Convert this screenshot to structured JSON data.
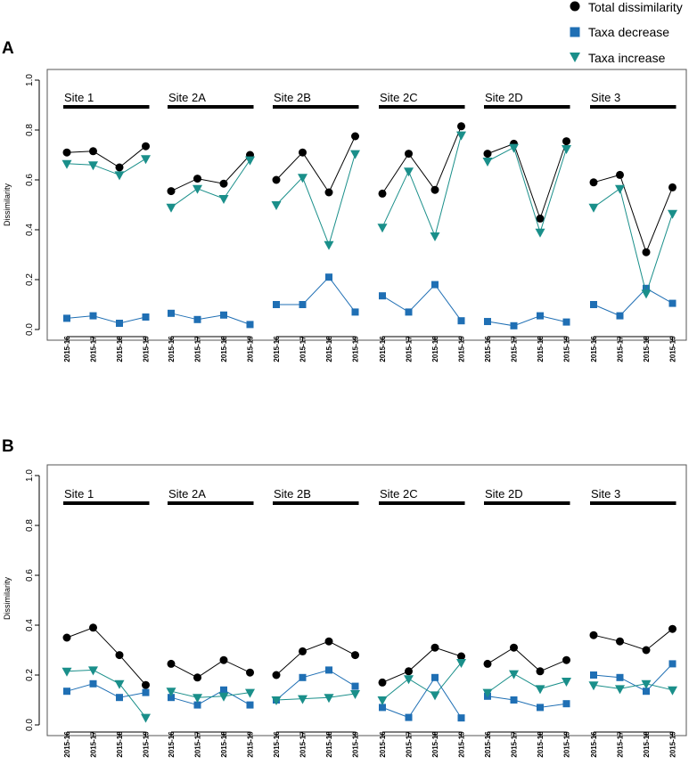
{
  "legend": {
    "items": [
      {
        "label": "Total dissimilarity",
        "marker": "circle",
        "color": "#000000"
      },
      {
        "label": "Taxa decrease",
        "marker": "square",
        "color": "#1f6fb4"
      },
      {
        "label": "Taxa increase",
        "marker": "triangle-down",
        "color": "#1a8f8a"
      }
    ]
  },
  "colors": {
    "total": "#000000",
    "decrease": "#1f6fb4",
    "increase": "#1a8f8a",
    "site_bar": "#000000",
    "axis": "#000000"
  },
  "chart_data": [
    {
      "panel_label": "A",
      "type": "line",
      "ylabel": "Dissimilarity",
      "ylim": [
        0,
        1.0
      ],
      "yticks": [
        "0.0",
        "0.2",
        "0.4",
        "0.6",
        "0.8",
        "1.0"
      ],
      "categories": [
        "2015-16",
        "2015-17",
        "2015-18",
        "2015-19"
      ],
      "sites": [
        {
          "name": "Site 1",
          "total": [
            0.71,
            0.715,
            0.65,
            0.735
          ],
          "decrease": [
            0.045,
            0.055,
            0.025,
            0.05
          ],
          "increase": [
            0.665,
            0.66,
            0.62,
            0.685
          ]
        },
        {
          "name": "Site 2A",
          "total": [
            0.555,
            0.605,
            0.585,
            0.7
          ],
          "decrease": [
            0.065,
            0.04,
            0.058,
            0.02
          ],
          "increase": [
            0.49,
            0.565,
            0.525,
            0.68
          ]
        },
        {
          "name": "Site 2B",
          "total": [
            0.6,
            0.71,
            0.55,
            0.775
          ],
          "decrease": [
            0.1,
            0.1,
            0.21,
            0.07
          ],
          "increase": [
            0.5,
            0.61,
            0.34,
            0.705
          ]
        },
        {
          "name": "Site 2C",
          "total": [
            0.545,
            0.705,
            0.56,
            0.815
          ],
          "decrease": [
            0.135,
            0.07,
            0.18,
            0.035
          ],
          "increase": [
            0.41,
            0.635,
            0.375,
            0.78
          ]
        },
        {
          "name": "Site 2D",
          "total": [
            0.705,
            0.745,
            0.445,
            0.755
          ],
          "decrease": [
            0.032,
            0.015,
            0.055,
            0.03
          ],
          "increase": [
            0.675,
            0.73,
            0.39,
            0.725
          ]
        },
        {
          "name": "Site 3",
          "total": [
            0.59,
            0.62,
            0.31,
            0.57
          ],
          "decrease": [
            0.1,
            0.055,
            0.165,
            0.105
          ],
          "increase": [
            0.49,
            0.565,
            0.145,
            0.465
          ]
        }
      ]
    },
    {
      "panel_label": "B",
      "type": "line",
      "ylabel": "Dissimilarity",
      "ylim": [
        0,
        1.0
      ],
      "yticks": [
        "0.0",
        "0.2",
        "0.4",
        "0.6",
        "0.8",
        "1.0"
      ],
      "categories": [
        "2015-16",
        "2015-17",
        "2015-18",
        "2015-19"
      ],
      "sites": [
        {
          "name": "Site 1",
          "total": [
            0.35,
            0.39,
            0.28,
            0.16
          ],
          "decrease": [
            0.135,
            0.165,
            0.11,
            0.13
          ],
          "increase": [
            0.215,
            0.22,
            0.165,
            0.03
          ]
        },
        {
          "name": "Site 2A",
          "total": [
            0.245,
            0.19,
            0.26,
            0.21
          ],
          "decrease": [
            0.11,
            0.08,
            0.14,
            0.08
          ],
          "increase": [
            0.135,
            0.11,
            0.115,
            0.13
          ]
        },
        {
          "name": "Site 2B",
          "total": [
            0.2,
            0.295,
            0.335,
            0.28
          ],
          "decrease": [
            0.1,
            0.19,
            0.22,
            0.155
          ],
          "increase": [
            0.1,
            0.105,
            0.11,
            0.125
          ]
        },
        {
          "name": "Site 2C",
          "total": [
            0.17,
            0.215,
            0.31,
            0.275
          ],
          "decrease": [
            0.07,
            0.03,
            0.19,
            0.028
          ],
          "increase": [
            0.1,
            0.185,
            0.12,
            0.25
          ]
        },
        {
          "name": "Site 2D",
          "total": [
            0.245,
            0.31,
            0.215,
            0.26
          ],
          "decrease": [
            0.115,
            0.1,
            0.07,
            0.085
          ],
          "increase": [
            0.13,
            0.205,
            0.145,
            0.175
          ]
        },
        {
          "name": "Site 3",
          "total": [
            0.36,
            0.335,
            0.3,
            0.385
          ],
          "decrease": [
            0.2,
            0.19,
            0.135,
            0.245
          ],
          "increase": [
            0.16,
            0.145,
            0.165,
            0.14
          ]
        }
      ]
    }
  ]
}
